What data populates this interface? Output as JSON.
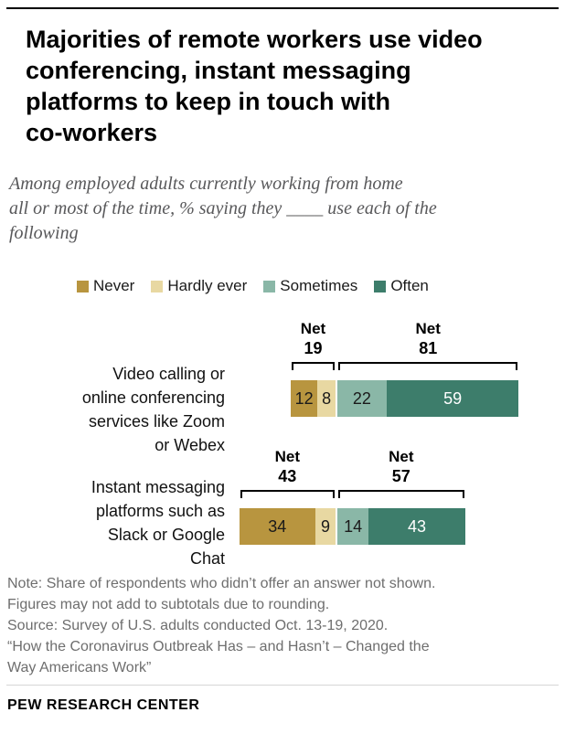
{
  "chart_data": {
    "type": "bar",
    "subtype": "horizontal-diverging-stacked",
    "units": "%",
    "title": "Majorities of remote workers use video\nconferencing, instant messaging\nplatforms to keep in touch with\nco-workers",
    "subtitle": "Among employed adults currently working from home\nall or most of the time, % saying they ____ use each of the\nfollowing",
    "legend": [
      "Never",
      "Hardly ever",
      "Sometimes",
      "Often"
    ],
    "legend_position": "top",
    "colors": [
      "#b8953f",
      "#e8d8a2",
      "#8ab7a7",
      "#3d7d6b"
    ],
    "value_label_colors": [
      "#1a1a1a",
      "#1a1a1a",
      "#1a1a1a",
      "#ffffff"
    ],
    "net_label": "Net",
    "axis": {
      "scale_min": 0,
      "scale_max": 100,
      "gridlines": false
    },
    "rows": [
      {
        "label": "Video calling or\nonline conferencing\nservices like Zoom\nor Webex",
        "values": [
          12,
          8,
          22,
          59
        ],
        "nets": [
          19,
          81
        ]
      },
      {
        "label": "Instant messaging\nplatforms such as\nSlack or Google\nChat",
        "values": [
          34,
          9,
          14,
          43
        ],
        "nets": [
          43,
          57
        ]
      }
    ]
  },
  "footer": {
    "note": "Note: Share of respondents who didn’t offer an answer not shown.\nFigures may not add to subtotals due to rounding.\nSource: Survey of U.S. adults conducted Oct. 13-19, 2020.\n“How the Coronavirus Outbreak Has – and Hasn’t – Changed the\nWay Americans Work”",
    "brand": "PEW RESEARCH CENTER"
  }
}
